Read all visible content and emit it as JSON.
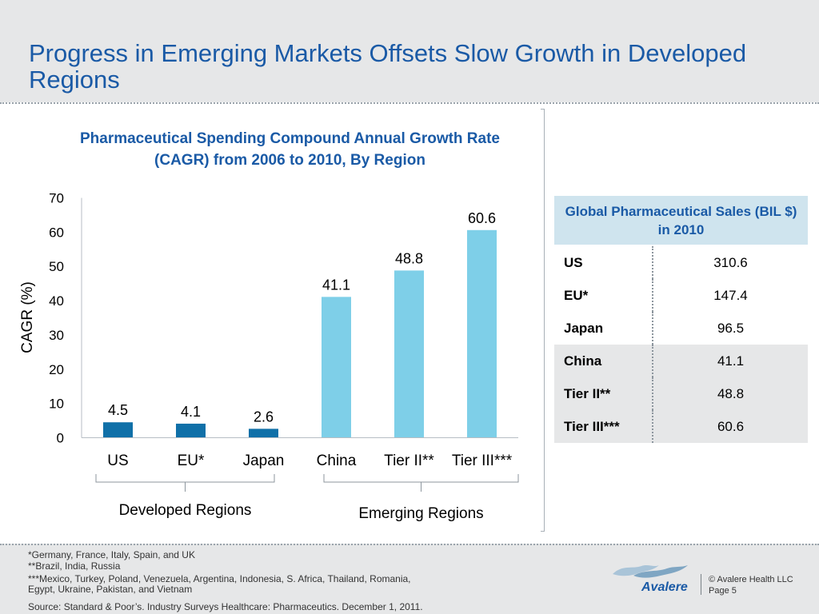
{
  "slide": {
    "title": "Progress in Emerging Markets Offsets Slow Growth in Developed Regions"
  },
  "chart_data": {
    "type": "bar",
    "title": "Pharmaceutical Spending Compound Annual Growth Rate (CAGR) from 2006 to 2010, By Region",
    "ylabel": "CAGR (%)",
    "xlabel": "",
    "ylim": [
      0,
      70
    ],
    "yticks": [
      0,
      10,
      20,
      30,
      40,
      50,
      60,
      70
    ],
    "categories": [
      "US",
      "EU*",
      "Japan",
      "China",
      "Tier II**",
      "Tier III***"
    ],
    "values": [
      4.5,
      4.1,
      2.6,
      41.1,
      48.8,
      60.6
    ],
    "value_labels": [
      "4.5",
      "4.1",
      "2.6",
      "41.1",
      "48.8",
      "60.6"
    ],
    "bar_colors": [
      "#1070a8",
      "#1070a8",
      "#1070a8",
      "#7ecfe8",
      "#7ecfe8",
      "#7ecfe8"
    ],
    "grid": false,
    "groups": [
      {
        "label": "Developed Regions",
        "categories": [
          "US",
          "EU*",
          "Japan"
        ]
      },
      {
        "label": "Emerging Regions",
        "categories": [
          "China",
          "Tier II**",
          "Tier III***"
        ]
      }
    ]
  },
  "sales_table": {
    "header": "Global Pharmaceutical Sales (BIL $) in 2010",
    "rows": [
      {
        "region": "US",
        "amount": "310.6"
      },
      {
        "region": "EU*",
        "amount": "147.4"
      },
      {
        "region": "Japan",
        "amount": "96.5"
      },
      {
        "region": "China",
        "amount": "41.1"
      },
      {
        "region": "Tier II**",
        "amount": "48.8"
      },
      {
        "region": "Tier III***",
        "amount": "60.6"
      }
    ]
  },
  "footer": {
    "notes": [
      "*Germany, France, Italy, Spain, and UK",
      "**Brazil, India, Russia",
      "***Mexico, Turkey, Poland, Venezuela, Argentina, Indonesia, S. Africa, Thailand, Romania,",
      "Egypt, Ukraine, Pakistan, and Vietnam"
    ],
    "source": "Source: Standard & Poor’s. Industry Surveys Healthcare: Pharmaceutics. December 1, 2011.",
    "logo_text": "Avalere",
    "copyright": "© Avalere Health LLC",
    "page": "Page 5"
  },
  "colors": {
    "title_blue": "#1a5aa6",
    "developed_bar": "#1070a8",
    "emerging_bar": "#7ecfe8",
    "table_header_bg": "#cfe4ee",
    "band_grey": "#e6e7e8"
  },
  "icons": {
    "logo": "avalere-bird-logo"
  }
}
